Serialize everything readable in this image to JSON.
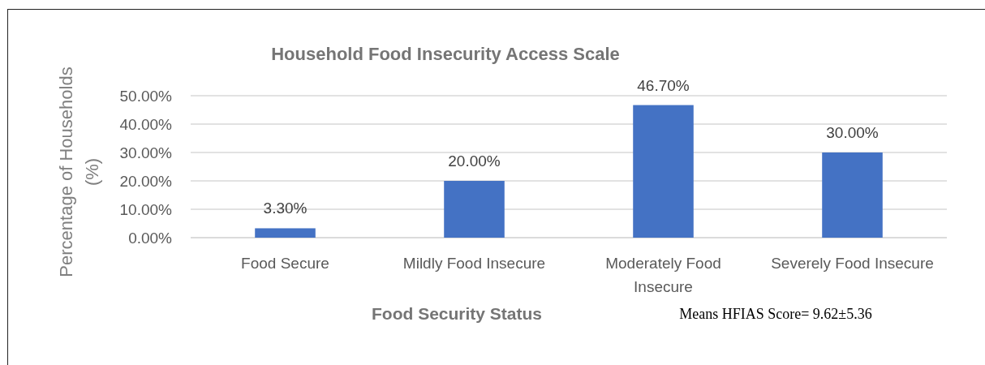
{
  "chart_data": {
    "type": "bar",
    "title": "Household Food Insecurity Access Scale",
    "xlabel": "Food Security Status",
    "ylabel": "Percentage of Households (%)",
    "categories": [
      "Food Secure",
      "Mildly Food Insecure",
      "Moderately Food Insecure",
      "Severely Food Insecure"
    ],
    "values": [
      3.3,
      20,
      46.7,
      30
    ],
    "value_labels": [
      "3.30%",
      "20.00%",
      "46.70%",
      "30.00%"
    ],
    "color": "#4472c4",
    "ylim": [
      0,
      50
    ],
    "yticks": [
      {
        "value": 0,
        "label": "0.00%"
      },
      {
        "value": 10,
        "label": "10.00%"
      },
      {
        "value": 20,
        "label": "20.00%"
      },
      {
        "value": 30,
        "label": "30.00%"
      },
      {
        "value": 40,
        "label": "40.00%"
      },
      {
        "value": 50,
        "label": "50.00%"
      }
    ],
    "grid": true,
    "annotations": [
      "Means HFIAS Score= 9.62±5.36"
    ]
  }
}
